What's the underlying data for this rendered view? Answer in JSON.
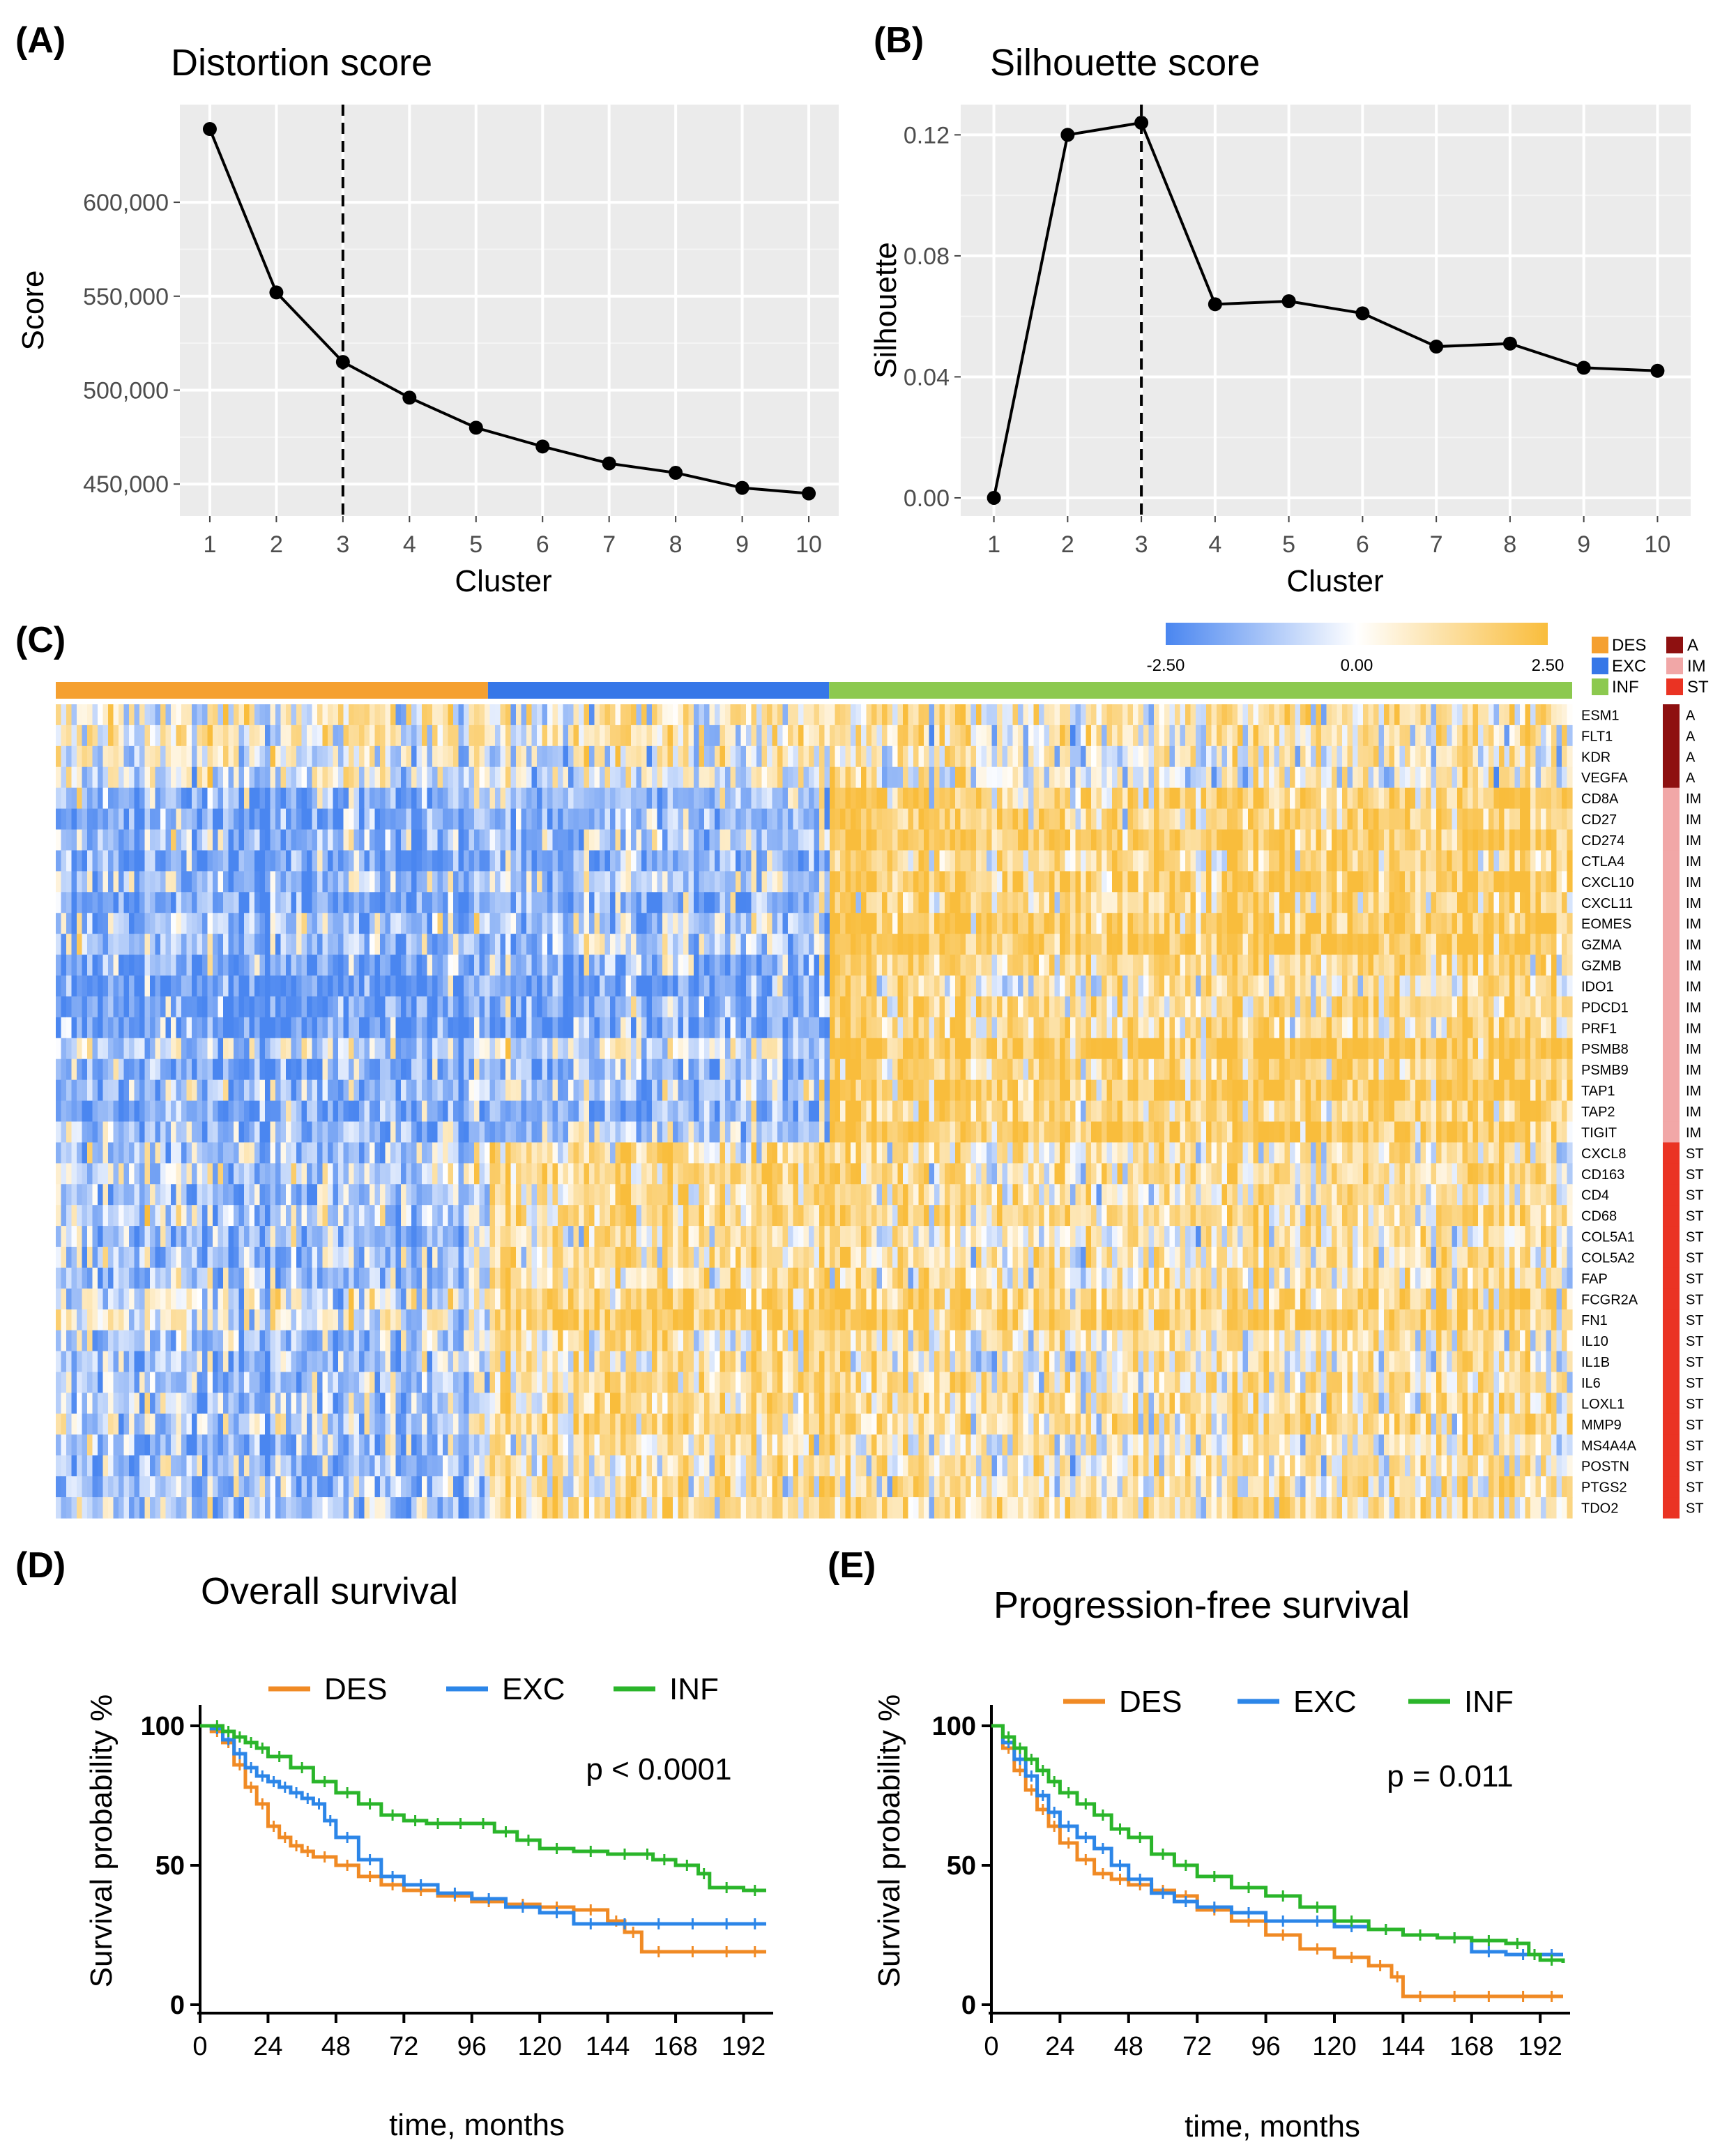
{
  "panels": {
    "a_label": "(A)",
    "b_label": "(B)",
    "c_label": "(C)",
    "d_label": "(D)",
    "e_label": "(E)"
  },
  "chart_data": [
    {
      "id": "A",
      "type": "line",
      "title": "Distortion score",
      "xlabel": "Cluster",
      "ylabel": "Score",
      "x": [
        1,
        2,
        3,
        4,
        5,
        6,
        7,
        8,
        9,
        10
      ],
      "values": [
        639000,
        552000,
        515000,
        496000,
        480000,
        470000,
        461000,
        456000,
        448000,
        445000
      ],
      "ylim": [
        433000,
        652000
      ],
      "yticks": [
        450000,
        500000,
        550000,
        600000
      ],
      "ytick_labels": [
        "450,000",
        "500,000",
        "550,000",
        "600,000"
      ],
      "xtick_labels": [
        "1",
        "2",
        "3",
        "4",
        "5",
        "6",
        "7",
        "8",
        "9",
        "10"
      ],
      "vline": 3
    },
    {
      "id": "B",
      "type": "line",
      "title": "Silhouette score",
      "xlabel": "Cluster",
      "ylabel": "Silhouette",
      "x": [
        1,
        2,
        3,
        4,
        5,
        6,
        7,
        8,
        9,
        10
      ],
      "values": [
        0.0,
        0.12,
        0.124,
        0.064,
        0.065,
        0.061,
        0.05,
        0.051,
        0.043,
        0.042
      ],
      "ylim": [
        -0.006,
        0.13
      ],
      "yticks": [
        0.0,
        0.04,
        0.08,
        0.12
      ],
      "ytick_labels": [
        "0.00",
        "0.04",
        "0.08",
        "0.12"
      ],
      "xtick_labels": [
        "1",
        "2",
        "3",
        "4",
        "5",
        "6",
        "7",
        "8",
        "9",
        "10"
      ],
      "vline": 3
    },
    {
      "id": "C",
      "type": "heatmap",
      "colorbar": {
        "min": -2.5,
        "max": 2.5,
        "labels": [
          "-2.50",
          "0.00",
          "2.50"
        ],
        "low_color": "#4a86f0",
        "mid_color": "#ffffff",
        "high_color": "#f9bd3c"
      },
      "groups": [
        {
          "name": "DES",
          "color": "#f5a030",
          "fraction": 0.285
        },
        {
          "name": "EXC",
          "color": "#3677e8",
          "fraction": 0.225
        },
        {
          "name": "INF",
          "color": "#8cc94f",
          "fraction": 0.49
        }
      ],
      "categories_legend": [
        {
          "name": "A",
          "color": "#8e1010"
        },
        {
          "name": "IM",
          "color": "#f1a7a7"
        },
        {
          "name": "ST",
          "color": "#ea3323"
        }
      ],
      "genes": [
        {
          "name": "ESM1",
          "cat": "A"
        },
        {
          "name": "FLT1",
          "cat": "A"
        },
        {
          "name": "KDR",
          "cat": "A"
        },
        {
          "name": "VEGFA",
          "cat": "A"
        },
        {
          "name": "CD8A",
          "cat": "IM"
        },
        {
          "name": "CD27",
          "cat": "IM"
        },
        {
          "name": "CD274",
          "cat": "IM"
        },
        {
          "name": "CTLA4",
          "cat": "IM"
        },
        {
          "name": "CXCL10",
          "cat": "IM"
        },
        {
          "name": "CXCL11",
          "cat": "IM"
        },
        {
          "name": "EOMES",
          "cat": "IM"
        },
        {
          "name": "GZMA",
          "cat": "IM"
        },
        {
          "name": "GZMB",
          "cat": "IM"
        },
        {
          "name": "IDO1",
          "cat": "IM"
        },
        {
          "name": "PDCD1",
          "cat": "IM"
        },
        {
          "name": "PRF1",
          "cat": "IM"
        },
        {
          "name": "PSMB8",
          "cat": "IM"
        },
        {
          "name": "PSMB9",
          "cat": "IM"
        },
        {
          "name": "TAP1",
          "cat": "IM"
        },
        {
          "name": "TAP2",
          "cat": "IM"
        },
        {
          "name": "TIGIT",
          "cat": "IM"
        },
        {
          "name": "CXCL8",
          "cat": "ST"
        },
        {
          "name": "CD163",
          "cat": "ST"
        },
        {
          "name": "CD4",
          "cat": "ST"
        },
        {
          "name": "CD68",
          "cat": "ST"
        },
        {
          "name": "COL5A1",
          "cat": "ST"
        },
        {
          "name": "COL5A2",
          "cat": "ST"
        },
        {
          "name": "FAP",
          "cat": "ST"
        },
        {
          "name": "FCGR2A",
          "cat": "ST"
        },
        {
          "name": "FN1",
          "cat": "ST"
        },
        {
          "name": "IL10",
          "cat": "ST"
        },
        {
          "name": "IL1B",
          "cat": "ST"
        },
        {
          "name": "IL6",
          "cat": "ST"
        },
        {
          "name": "LOXL1",
          "cat": "ST"
        },
        {
          "name": "MMP9",
          "cat": "ST"
        },
        {
          "name": "MS4A4A",
          "cat": "ST"
        },
        {
          "name": "POSTN",
          "cat": "ST"
        },
        {
          "name": "PTGS2",
          "cat": "ST"
        },
        {
          "name": "TDO2",
          "cat": "ST"
        }
      ],
      "mean_by_category": {
        "A": {
          "DES": 0.0,
          "EXC": 0.3,
          "INF": 0.5
        },
        "IM": {
          "DES": -1.4,
          "EXC": -1.0,
          "INF": 1.6
        },
        "ST": {
          "DES": -0.9,
          "EXC": 1.0,
          "INF": 0.8
        }
      }
    },
    {
      "id": "D",
      "type": "line",
      "title": "Overall survival",
      "xlabel": "time, months",
      "ylabel": "Survival probability %",
      "annotation": "p < 0.0001",
      "xlim": [
        0,
        200
      ],
      "ylim": [
        0,
        100
      ],
      "xticks": [
        0,
        24,
        48,
        72,
        96,
        120,
        144,
        168,
        192
      ],
      "xtick_labels": [
        "0",
        "24",
        "48",
        "72",
        "96",
        "120",
        "144",
        "168",
        "192"
      ],
      "yticks": [
        0,
        50,
        100
      ],
      "ytick_labels": [
        "0",
        "50",
        "100"
      ],
      "series": [
        {
          "name": "DES",
          "color": "#f08a24",
          "x": [
            0,
            4,
            8,
            12,
            16,
            20,
            24,
            28,
            32,
            36,
            40,
            48,
            56,
            64,
            72,
            84,
            96,
            108,
            120,
            132,
            144,
            150,
            156,
            168,
            180,
            192,
            200
          ],
          "values": [
            100,
            98,
            94,
            86,
            78,
            72,
            64,
            60,
            57,
            55,
            53,
            50,
            46,
            43,
            41,
            39,
            37,
            36,
            35,
            34,
            30,
            26,
            19,
            19,
            19,
            19,
            19
          ]
        },
        {
          "name": "EXC",
          "color": "#2c86e8",
          "x": [
            0,
            4,
            8,
            12,
            16,
            20,
            24,
            28,
            32,
            36,
            40,
            44,
            48,
            56,
            64,
            72,
            84,
            96,
            108,
            120,
            132,
            144,
            156,
            168,
            180,
            192,
            200
          ],
          "values": [
            100,
            99,
            95,
            90,
            85,
            82,
            80,
            78,
            76,
            74,
            72,
            66,
            60,
            52,
            46,
            43,
            40,
            38,
            35,
            33,
            29,
            29,
            29,
            29,
            29,
            29,
            29
          ]
        },
        {
          "name": "INF",
          "color": "#2ab52a",
          "x": [
            0,
            4,
            8,
            12,
            16,
            20,
            24,
            32,
            40,
            48,
            56,
            64,
            72,
            80,
            88,
            96,
            104,
            112,
            120,
            132,
            144,
            156,
            160,
            168,
            176,
            180,
            192,
            200
          ],
          "values": [
            100,
            100,
            98,
            96,
            94,
            92,
            89,
            85,
            80,
            76,
            72,
            68,
            66,
            65,
            65,
            65,
            62,
            59,
            56,
            55,
            54,
            54,
            52,
            50,
            47,
            42,
            41,
            41
          ]
        }
      ]
    },
    {
      "id": "E",
      "type": "line",
      "title": "Progression-free survival",
      "xlabel": "time, months",
      "ylabel": "Survival probability %",
      "annotation": "p = 0.011",
      "xlim": [
        0,
        200
      ],
      "ylim": [
        0,
        100
      ],
      "xticks": [
        0,
        24,
        48,
        72,
        96,
        120,
        144,
        168,
        192
      ],
      "xtick_labels": [
        "0",
        "24",
        "48",
        "72",
        "96",
        "120",
        "144",
        "168",
        "192"
      ],
      "yticks": [
        0,
        50,
        100
      ],
      "ytick_labels": [
        "0",
        "50",
        "100"
      ],
      "series": [
        {
          "name": "DES",
          "color": "#f08a24",
          "x": [
            0,
            4,
            8,
            12,
            16,
            20,
            24,
            30,
            36,
            42,
            48,
            56,
            64,
            72,
            84,
            96,
            108,
            120,
            132,
            140,
            144,
            156,
            168,
            180,
            192,
            200
          ],
          "values": [
            100,
            92,
            84,
            77,
            70,
            64,
            58,
            52,
            47,
            45,
            43,
            41,
            39,
            34,
            30,
            25,
            20,
            17,
            14,
            10,
            3,
            3,
            3,
            3,
            3,
            3
          ]
        },
        {
          "name": "EXC",
          "color": "#2c86e8",
          "x": [
            0,
            4,
            8,
            12,
            16,
            20,
            24,
            30,
            36,
            42,
            48,
            56,
            64,
            72,
            84,
            96,
            108,
            120,
            132,
            144,
            156,
            168,
            180,
            192,
            200
          ],
          "values": [
            100,
            94,
            88,
            82,
            75,
            69,
            64,
            60,
            56,
            50,
            45,
            40,
            37,
            35,
            33,
            30,
            30,
            28,
            27,
            25,
            24,
            19,
            18,
            18,
            18
          ]
        },
        {
          "name": "INF",
          "color": "#2ab52a",
          "x": [
            0,
            4,
            8,
            12,
            16,
            20,
            24,
            30,
            36,
            42,
            48,
            56,
            64,
            72,
            84,
            96,
            108,
            120,
            132,
            144,
            156,
            168,
            180,
            188,
            192,
            200
          ],
          "values": [
            100,
            96,
            92,
            88,
            84,
            80,
            76,
            72,
            68,
            63,
            60,
            54,
            50,
            46,
            42,
            39,
            35,
            30,
            27,
            25,
            24,
            23,
            22,
            18,
            16,
            15
          ]
        }
      ]
    }
  ]
}
